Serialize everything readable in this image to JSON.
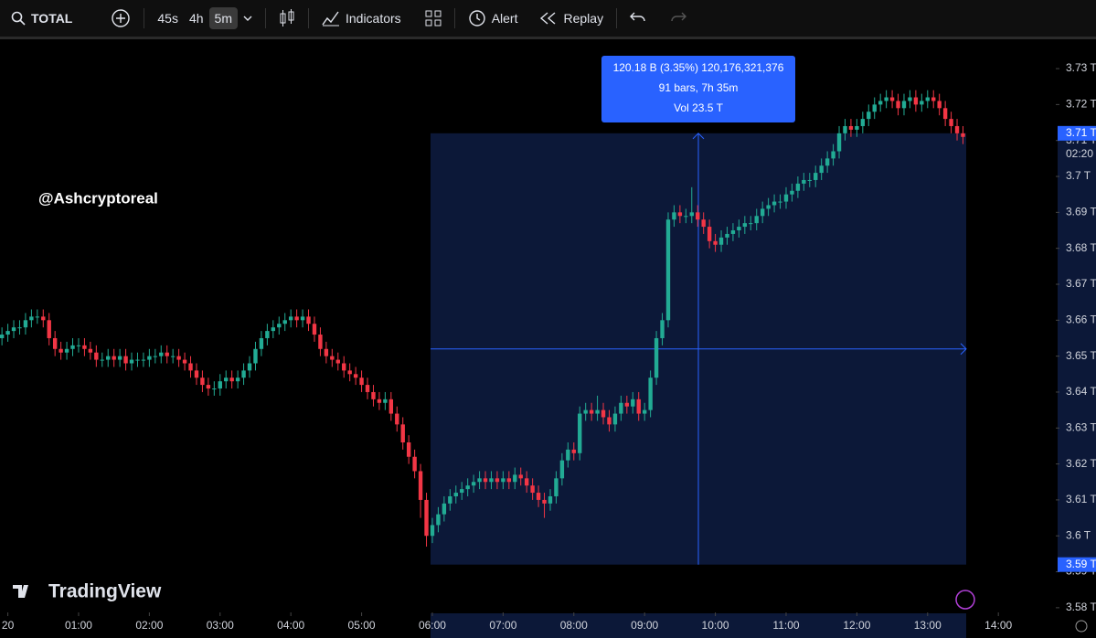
{
  "toolbar": {
    "symbol": "TOTAL",
    "intervals": [
      "45s",
      "4h",
      "5m"
    ],
    "indicators": "Indicators",
    "alert": "Alert",
    "replay": "Replay"
  },
  "chart_data": {
    "type": "candlestick",
    "watermark": "@Ashcryptoreal",
    "logo": "TradingView",
    "colors": {
      "up": "#22ab94",
      "down": "#f23645"
    },
    "xlim": [
      -0.33,
      178.74
    ],
    "xticks": [
      {
        "value": 1,
        "label": "20"
      },
      {
        "value": 13,
        "label": "01:00"
      },
      {
        "value": 25,
        "label": "02:00"
      },
      {
        "value": 37,
        "label": "03:00"
      },
      {
        "value": 49,
        "label": "04:00"
      },
      {
        "value": 61,
        "label": "05:00"
      },
      {
        "value": 73,
        "label": "06:00"
      },
      {
        "value": 85,
        "label": "07:00"
      },
      {
        "value": 97,
        "label": "08:00"
      },
      {
        "value": 109,
        "label": "09:00"
      },
      {
        "value": 121,
        "label": "10:00"
      },
      {
        "value": 133,
        "label": "11:00"
      },
      {
        "value": 145,
        "label": "12:00"
      },
      {
        "value": 157,
        "label": "13:00"
      },
      {
        "value": 169,
        "label": "14:00"
      }
    ],
    "ylim": [
      3.5787,
      3.7379
    ],
    "yticks": [
      {
        "value": 3.58,
        "label": "3.58 T"
      },
      {
        "value": 3.59,
        "label": "3.59 T"
      },
      {
        "value": 3.6,
        "label": "3.6 T"
      },
      {
        "value": 3.61,
        "label": "3.61 T"
      },
      {
        "value": 3.62,
        "label": "3.62 T"
      },
      {
        "value": 3.63,
        "label": "3.63 T"
      },
      {
        "value": 3.64,
        "label": "3.64 T"
      },
      {
        "value": 3.65,
        "label": "3.65 T"
      },
      {
        "value": 3.66,
        "label": "3.66 T"
      },
      {
        "value": 3.67,
        "label": "3.67 T"
      },
      {
        "value": 3.68,
        "label": "3.68 T"
      },
      {
        "value": 3.69,
        "label": "3.69 T"
      },
      {
        "value": 3.7,
        "label": "3.7 T"
      },
      {
        "value": 3.71,
        "label": "3.71 T"
      },
      {
        "value": 3.72,
        "label": "3.72 T"
      },
      {
        "value": 3.73,
        "label": "3.73 T"
      }
    ],
    "measure": {
      "lines": [
        "120.18 B (3.35%) 120,176,321,376",
        "91 bars, 7h 35m",
        "Vol 23.5 T"
      ],
      "price_labels": [
        {
          "value": 3.712,
          "label": "3.71 T"
        },
        {
          "value": 3.592,
          "label": "3.59 T"
        }
      ],
      "countdown": "02:20"
    },
    "candles": [
      [
        3.655,
        3.658,
        3.653,
        3.656
      ],
      [
        3.656,
        3.659,
        3.654,
        3.657
      ],
      [
        3.657,
        3.66,
        3.655,
        3.658
      ],
      [
        3.658,
        3.66,
        3.656,
        3.658
      ],
      [
        3.658,
        3.662,
        3.656,
        3.66
      ],
      [
        3.66,
        3.663,
        3.658,
        3.661
      ],
      [
        3.661,
        3.663,
        3.659,
        3.661
      ],
      [
        3.661,
        3.663,
        3.658,
        3.66
      ],
      [
        3.66,
        3.662,
        3.653,
        3.655
      ],
      [
        3.655,
        3.657,
        3.65,
        3.652
      ],
      [
        3.652,
        3.654,
        3.649,
        3.651
      ],
      [
        3.651,
        3.654,
        3.649,
        3.652
      ],
      [
        3.652,
        3.655,
        3.65,
        3.653
      ],
      [
        3.653,
        3.655,
        3.651,
        3.653
      ],
      [
        3.653,
        3.655,
        3.65,
        3.652
      ],
      [
        3.652,
        3.654,
        3.649,
        3.651
      ],
      [
        3.651,
        3.653,
        3.647,
        3.649
      ],
      [
        3.649,
        3.651,
        3.647,
        3.649
      ],
      [
        3.649,
        3.652,
        3.647,
        3.65
      ],
      [
        3.65,
        3.652,
        3.647,
        3.649
      ],
      [
        3.649,
        3.652,
        3.647,
        3.65
      ],
      [
        3.65,
        3.652,
        3.646,
        3.648
      ],
      [
        3.648,
        3.651,
        3.646,
        3.649
      ],
      [
        3.649,
        3.651,
        3.647,
        3.649
      ],
      [
        3.649,
        3.651,
        3.647,
        3.649
      ],
      [
        3.649,
        3.652,
        3.647,
        3.65
      ],
      [
        3.65,
        3.652,
        3.648,
        3.65
      ],
      [
        3.65,
        3.653,
        3.648,
        3.651
      ],
      [
        3.651,
        3.653,
        3.648,
        3.65
      ],
      [
        3.65,
        3.652,
        3.648,
        3.65
      ],
      [
        3.65,
        3.652,
        3.647,
        3.649
      ],
      [
        3.649,
        3.651,
        3.646,
        3.648
      ],
      [
        3.648,
        3.65,
        3.644,
        3.646
      ],
      [
        3.646,
        3.648,
        3.642,
        3.644
      ],
      [
        3.644,
        3.646,
        3.64,
        3.642
      ],
      [
        3.642,
        3.644,
        3.639,
        3.641
      ],
      [
        3.641,
        3.643,
        3.639,
        3.641
      ],
      [
        3.641,
        3.645,
        3.639,
        3.643
      ],
      [
        3.643,
        3.646,
        3.641,
        3.644
      ],
      [
        3.644,
        3.646,
        3.641,
        3.643
      ],
      [
        3.643,
        3.646,
        3.641,
        3.644
      ],
      [
        3.644,
        3.648,
        3.642,
        3.646
      ],
      [
        3.646,
        3.65,
        3.644,
        3.648
      ],
      [
        3.648,
        3.654,
        3.646,
        3.652
      ],
      [
        3.652,
        3.657,
        3.65,
        3.655
      ],
      [
        3.655,
        3.659,
        3.653,
        3.657
      ],
      [
        3.657,
        3.66,
        3.655,
        3.658
      ],
      [
        3.658,
        3.661,
        3.656,
        3.659
      ],
      [
        3.659,
        3.662,
        3.657,
        3.66
      ],
      [
        3.66,
        3.663,
        3.658,
        3.661
      ],
      [
        3.661,
        3.663,
        3.658,
        3.66
      ],
      [
        3.66,
        3.663,
        3.658,
        3.661
      ],
      [
        3.661,
        3.663,
        3.657,
        3.659
      ],
      [
        3.659,
        3.661,
        3.654,
        3.656
      ],
      [
        3.656,
        3.658,
        3.65,
        3.652
      ],
      [
        3.652,
        3.654,
        3.648,
        3.65
      ],
      [
        3.65,
        3.652,
        3.647,
        3.649
      ],
      [
        3.649,
        3.651,
        3.646,
        3.648
      ],
      [
        3.648,
        3.65,
        3.644,
        3.646
      ],
      [
        3.646,
        3.648,
        3.643,
        3.645
      ],
      [
        3.645,
        3.647,
        3.642,
        3.644
      ],
      [
        3.644,
        3.646,
        3.64,
        3.642
      ],
      [
        3.642,
        3.644,
        3.638,
        3.64
      ],
      [
        3.64,
        3.642,
        3.636,
        3.638
      ],
      [
        3.638,
        3.64,
        3.635,
        3.637
      ],
      [
        3.637,
        3.64,
        3.635,
        3.638
      ],
      [
        3.638,
        3.64,
        3.632,
        3.634
      ],
      [
        3.634,
        3.636,
        3.629,
        3.631
      ],
      [
        3.631,
        3.633,
        3.624,
        3.626
      ],
      [
        3.626,
        3.628,
        3.62,
        3.622
      ],
      [
        3.622,
        3.624,
        3.616,
        3.618
      ],
      [
        3.618,
        3.62,
        3.605,
        3.61
      ],
      [
        3.61,
        3.612,
        3.597,
        3.6
      ],
      [
        3.6,
        3.605,
        3.598,
        3.603
      ],
      [
        3.603,
        3.608,
        3.601,
        3.606
      ],
      [
        3.606,
        3.611,
        3.604,
        3.609
      ],
      [
        3.609,
        3.613,
        3.607,
        3.611
      ],
      [
        3.611,
        3.614,
        3.609,
        3.612
      ],
      [
        3.612,
        3.615,
        3.61,
        3.613
      ],
      [
        3.613,
        3.616,
        3.611,
        3.614
      ],
      [
        3.614,
        3.617,
        3.612,
        3.615
      ],
      [
        3.615,
        3.618,
        3.613,
        3.616
      ],
      [
        3.616,
        3.618,
        3.613,
        3.615
      ],
      [
        3.615,
        3.618,
        3.613,
        3.616
      ],
      [
        3.616,
        3.618,
        3.613,
        3.615
      ],
      [
        3.615,
        3.618,
        3.613,
        3.616
      ],
      [
        3.616,
        3.618,
        3.613,
        3.615
      ],
      [
        3.615,
        3.619,
        3.613,
        3.617
      ],
      [
        3.617,
        3.619,
        3.614,
        3.616
      ],
      [
        3.616,
        3.618,
        3.612,
        3.614
      ],
      [
        3.614,
        3.616,
        3.61,
        3.612
      ],
      [
        3.612,
        3.614,
        3.608,
        3.61
      ],
      [
        3.61,
        3.612,
        3.605,
        3.609
      ],
      [
        3.609,
        3.613,
        3.607,
        3.611
      ],
      [
        3.611,
        3.618,
        3.609,
        3.616
      ],
      [
        3.616,
        3.623,
        3.614,
        3.621
      ],
      [
        3.621,
        3.626,
        3.619,
        3.624
      ],
      [
        3.624,
        3.626,
        3.621,
        3.623
      ],
      [
        3.623,
        3.636,
        3.621,
        3.634
      ],
      [
        3.634,
        3.637,
        3.632,
        3.635
      ],
      [
        3.635,
        3.637,
        3.632,
        3.634
      ],
      [
        3.634,
        3.639,
        3.632,
        3.635
      ],
      [
        3.635,
        3.637,
        3.631,
        3.633
      ],
      [
        3.633,
        3.635,
        3.629,
        3.631
      ],
      [
        3.631,
        3.636,
        3.629,
        3.634
      ],
      [
        3.634,
        3.639,
        3.632,
        3.637
      ],
      [
        3.637,
        3.639,
        3.634,
        3.636
      ],
      [
        3.636,
        3.64,
        3.634,
        3.638
      ],
      [
        3.638,
        3.64,
        3.632,
        3.634
      ],
      [
        3.634,
        3.637,
        3.632,
        3.635
      ],
      [
        3.635,
        3.646,
        3.633,
        3.644
      ],
      [
        3.644,
        3.657,
        3.642,
        3.655
      ],
      [
        3.655,
        3.662,
        3.653,
        3.66
      ],
      [
        3.66,
        3.69,
        3.658,
        3.688
      ],
      [
        3.688,
        3.692,
        3.686,
        3.69
      ],
      [
        3.69,
        3.692,
        3.687,
        3.689
      ],
      [
        3.689,
        3.691,
        3.687,
        3.689
      ],
      [
        3.689,
        3.697,
        3.687,
        3.69
      ],
      [
        3.69,
        3.692,
        3.686,
        3.688
      ],
      [
        3.688,
        3.69,
        3.684,
        3.686
      ],
      [
        3.686,
        3.688,
        3.68,
        3.682
      ],
      [
        3.682,
        3.684,
        3.679,
        3.681
      ],
      [
        3.681,
        3.685,
        3.679,
        3.683
      ],
      [
        3.683,
        3.686,
        3.681,
        3.684
      ],
      [
        3.684,
        3.687,
        3.682,
        3.685
      ],
      [
        3.685,
        3.688,
        3.683,
        3.686
      ],
      [
        3.686,
        3.689,
        3.684,
        3.687
      ],
      [
        3.687,
        3.689,
        3.685,
        3.687
      ],
      [
        3.687,
        3.691,
        3.685,
        3.689
      ],
      [
        3.689,
        3.693,
        3.687,
        3.691
      ],
      [
        3.691,
        3.694,
        3.689,
        3.692
      ],
      [
        3.692,
        3.695,
        3.69,
        3.693
      ],
      [
        3.693,
        3.695,
        3.691,
        3.693
      ],
      [
        3.693,
        3.697,
        3.691,
        3.695
      ],
      [
        3.695,
        3.698,
        3.693,
        3.696
      ],
      [
        3.696,
        3.7,
        3.694,
        3.698
      ],
      [
        3.698,
        3.701,
        3.696,
        3.699
      ],
      [
        3.699,
        3.701,
        3.697,
        3.699
      ],
      [
        3.699,
        3.703,
        3.697,
        3.701
      ],
      [
        3.701,
        3.705,
        3.699,
        3.703
      ],
      [
        3.703,
        3.707,
        3.701,
        3.705
      ],
      [
        3.705,
        3.709,
        3.703,
        3.707
      ],
      [
        3.707,
        3.714,
        3.705,
        3.712
      ],
      [
        3.712,
        3.716,
        3.71,
        3.714
      ],
      [
        3.714,
        3.716,
        3.711,
        3.713
      ],
      [
        3.713,
        3.716,
        3.711,
        3.714
      ],
      [
        3.714,
        3.718,
        3.712,
        3.716
      ],
      [
        3.716,
        3.72,
        3.714,
        3.718
      ],
      [
        3.718,
        3.722,
        3.716,
        3.72
      ],
      [
        3.72,
        3.723,
        3.718,
        3.721
      ],
      [
        3.721,
        3.724,
        3.719,
        3.722
      ],
      [
        3.722,
        3.724,
        3.719,
        3.721
      ],
      [
        3.721,
        3.723,
        3.717,
        3.719
      ],
      [
        3.719,
        3.723,
        3.717,
        3.721
      ],
      [
        3.721,
        3.724,
        3.719,
        3.722
      ],
      [
        3.722,
        3.724,
        3.718,
        3.72
      ],
      [
        3.72,
        3.723,
        3.718,
        3.721
      ],
      [
        3.721,
        3.724,
        3.719,
        3.722
      ],
      [
        3.722,
        3.724,
        3.719,
        3.721
      ],
      [
        3.721,
        3.723,
        3.717,
        3.719
      ],
      [
        3.719,
        3.721,
        3.714,
        3.716
      ],
      [
        3.716,
        3.718,
        3.712,
        3.714
      ],
      [
        3.714,
        3.716,
        3.71,
        3.712
      ],
      [
        3.712,
        3.714,
        3.709,
        3.711
      ]
    ]
  }
}
